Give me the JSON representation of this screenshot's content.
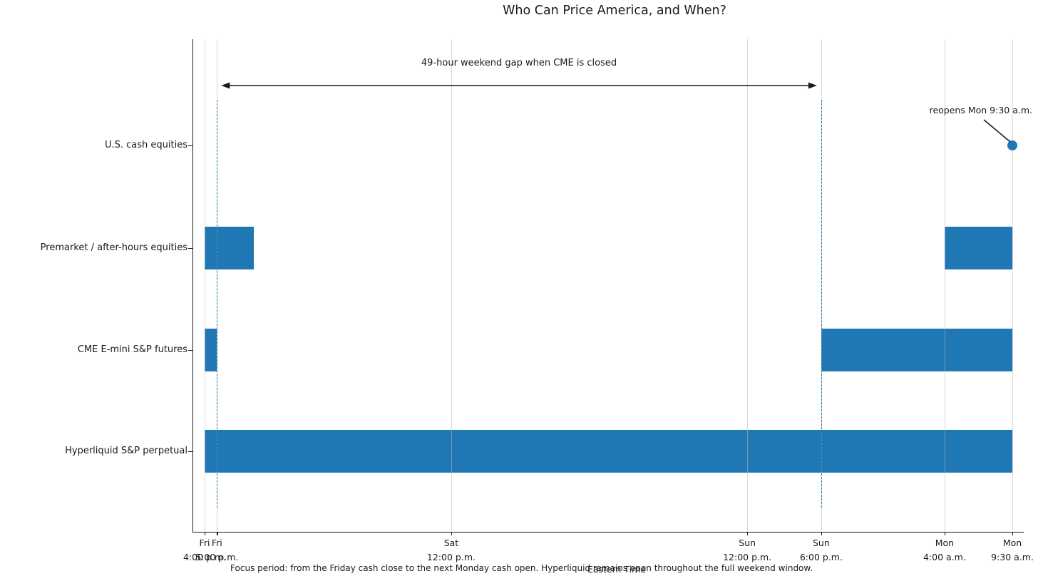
{
  "title": "Who Can Price America, and When?",
  "xlabel": "Eastern Time",
  "caption": "Focus period: from the Friday cash close to the next Monday cash open. Hyperliquid remains open throughout the full weekend window.",
  "annotations": {
    "gap_label": "49-hour weekend gap when CME is closed",
    "reopen_label": "reopens Mon 9:30 a.m."
  },
  "colors": {
    "bar": "#1f77b4",
    "dashed_line": "#1f77b4",
    "marker": "#1f77b4",
    "grid": "#b9b9b9",
    "text": "#1a1a1a"
  },
  "chart_data": {
    "type": "bar",
    "subtype": "horizontal-gantt-timeline",
    "x_unit": "hours after Fri 4:00 p.m. Eastern Time",
    "x_range_hours": [
      0,
      65.5
    ],
    "grid": "vertical, at each tick",
    "ticks": [
      {
        "hour": 0,
        "day": "Fri",
        "time": "4:00 p.m."
      },
      {
        "hour": 1,
        "day": "Fri",
        "time": "5:00 p.m."
      },
      {
        "hour": 20,
        "day": "Sat",
        "time": "12:00 p.m."
      },
      {
        "hour": 44,
        "day": "Sun",
        "time": "12:00 p.m."
      },
      {
        "hour": 50,
        "day": "Sun",
        "time": "6:00 p.m."
      },
      {
        "hour": 60,
        "day": "Mon",
        "time": "4:00 a.m."
      },
      {
        "hour": 65.5,
        "day": "Mon",
        "time": "9:30 a.m."
      }
    ],
    "rows": [
      {
        "label": "U.S. cash equities",
        "bars": [],
        "marker_hour": 65.5
      },
      {
        "label": "Premarket / after-hours equities",
        "bars": [
          [
            0,
            4
          ],
          [
            60,
            65.5
          ]
        ]
      },
      {
        "label": "CME E-mini S&P futures",
        "bars": [
          [
            0,
            1
          ],
          [
            50,
            65.5
          ]
        ]
      },
      {
        "label": "Hyperliquid S&P perpetual",
        "bars": [
          [
            0,
            65.5
          ]
        ]
      }
    ],
    "dashed_lines_hours": [
      1,
      50
    ],
    "gap_arrow_hours": [
      1,
      50
    ]
  }
}
